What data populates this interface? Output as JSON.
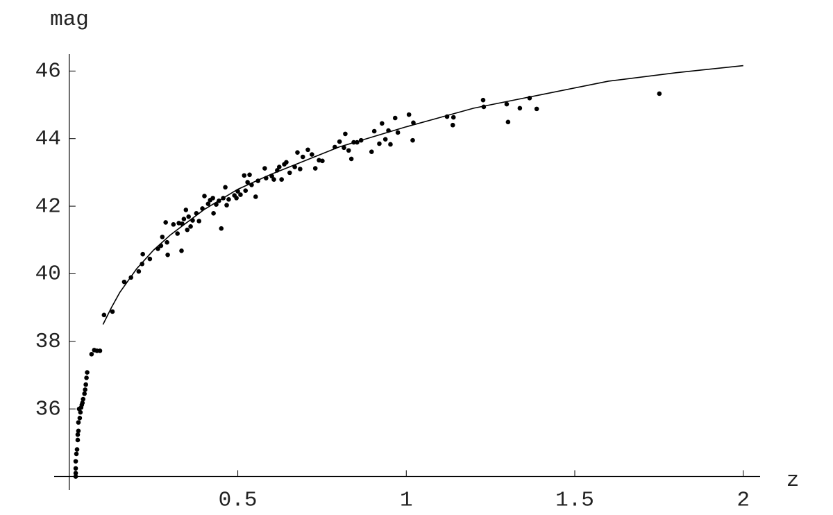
{
  "chart_data": {
    "type": "scatter",
    "x_label": "z",
    "y_label": "mag",
    "xlim": [
      -0.045,
      2.05
    ],
    "ylim": [
      33.6,
      46.5
    ],
    "origin": [
      0,
      34
    ],
    "xticks": [
      0.5,
      1,
      1.5,
      2
    ],
    "yticks": [
      36,
      38,
      40,
      42,
      44,
      46
    ],
    "series": [
      {
        "type": "scatter",
        "color": "#000000",
        "x": [
          0.019,
          0.019,
          0.019,
          0.019,
          0.021,
          0.023,
          0.025,
          0.025,
          0.027,
          0.027,
          0.031,
          0.033,
          0.035,
          0.039,
          0.041,
          0.045,
          0.047,
          0.049,
          0.051,
          0.053,
          0.066,
          0.074,
          0.082,
          0.091,
          0.029,
          0.037,
          0.103,
          0.128,
          0.163,
          0.183,
          0.206,
          0.216,
          0.218,
          0.239,
          0.263,
          0.272,
          0.276,
          0.286,
          0.29,
          0.292,
          0.309,
          0.321,
          0.325,
          0.333,
          0.335,
          0.34,
          0.346,
          0.35,
          0.354,
          0.36,
          0.366,
          0.377,
          0.385,
          0.395,
          0.401,
          0.412,
          0.418,
          0.426,
          0.428,
          0.436,
          0.444,
          0.451,
          0.457,
          0.463,
          0.467,
          0.473,
          0.49,
          0.496,
          0.5,
          0.508,
          0.519,
          0.523,
          0.529,
          0.535,
          0.541,
          0.553,
          0.56,
          0.58,
          0.584,
          0.601,
          0.607,
          0.617,
          0.623,
          0.63,
          0.638,
          0.644,
          0.654,
          0.669,
          0.677,
          0.685,
          0.693,
          0.708,
          0.72,
          0.73,
          0.741,
          0.751,
          0.788,
          0.802,
          0.815,
          0.819,
          0.829,
          0.837,
          0.844,
          0.854,
          0.866,
          0.897,
          0.905,
          0.92,
          0.928,
          0.938,
          0.947,
          0.953,
          0.967,
          0.975,
          1.008,
          1.019,
          1.021,
          1.121,
          1.14,
          1.138,
          1.228,
          1.23,
          1.298,
          1.302,
          1.337,
          1.366,
          1.387,
          1.751
        ],
        "values": [
          34.0,
          34.1,
          34.24,
          34.45,
          34.67,
          34.8,
          35.08,
          35.24,
          35.35,
          35.6,
          35.73,
          35.9,
          36.04,
          36.18,
          36.29,
          36.45,
          36.57,
          36.72,
          36.92,
          37.08,
          37.62,
          37.74,
          37.72,
          37.72,
          36.0,
          36.12,
          38.78,
          38.88,
          39.76,
          39.89,
          40.07,
          40.29,
          40.58,
          40.44,
          40.74,
          40.83,
          41.09,
          41.52,
          40.93,
          40.56,
          41.46,
          41.19,
          41.5,
          40.68,
          41.48,
          41.62,
          41.89,
          41.3,
          41.69,
          41.4,
          41.58,
          41.79,
          41.56,
          41.93,
          42.3,
          42.07,
          42.18,
          42.24,
          41.79,
          42.05,
          42.16,
          41.34,
          42.24,
          42.56,
          42.03,
          42.2,
          42.32,
          42.24,
          42.44,
          42.34,
          42.91,
          42.46,
          42.71,
          42.93,
          42.63,
          42.28,
          42.75,
          43.12,
          42.83,
          42.89,
          42.79,
          43.06,
          43.16,
          42.79,
          43.24,
          43.3,
          42.99,
          43.16,
          43.59,
          43.1,
          43.46,
          43.67,
          43.53,
          43.12,
          43.36,
          43.34,
          43.75,
          43.91,
          43.73,
          44.14,
          43.65,
          43.4,
          43.89,
          43.89,
          43.95,
          43.61,
          44.22,
          43.85,
          44.45,
          43.98,
          44.24,
          43.83,
          44.61,
          44.18,
          44.71,
          43.95,
          44.47,
          44.65,
          44.63,
          44.4,
          45.14,
          44.94,
          45.02,
          44.49,
          44.9,
          45.2,
          44.88,
          45.33
        ]
      },
      {
        "type": "line",
        "color": "#000000",
        "x": [
          0.1,
          0.125,
          0.15,
          0.2,
          0.25,
          0.3,
          0.4,
          0.5,
          0.6,
          0.7,
          0.8,
          0.9,
          1.0,
          1.2,
          1.4,
          1.6,
          1.8,
          2.0
        ],
        "values": [
          38.5,
          39.0,
          39.45,
          40.15,
          40.7,
          41.15,
          41.9,
          42.5,
          42.95,
          43.35,
          43.75,
          44.05,
          44.35,
          44.9,
          45.3,
          45.7,
          45.95,
          46.16
        ]
      }
    ]
  }
}
